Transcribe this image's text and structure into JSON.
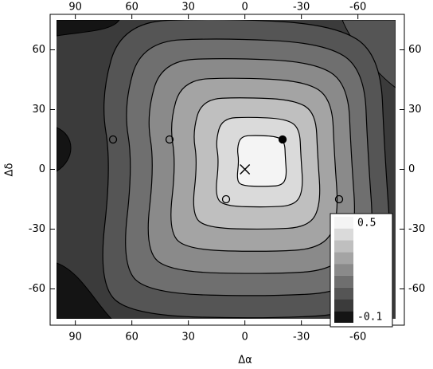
{
  "chart_data": {
    "type": "contour",
    "x_label": "Δα",
    "y_label": "Δδ",
    "xlim": [
      100,
      -80
    ],
    "ylim": [
      -75,
      75
    ],
    "xticks": [
      90,
      60,
      30,
      0,
      -30,
      -60
    ],
    "yticks": [
      60,
      30,
      0,
      -30,
      -60
    ],
    "colorbar": {
      "max_label": 0.5,
      "min_label": -0.1,
      "colors": [
        "#f4f4f4",
        "#dadada",
        "#bfbfbf",
        "#a4a4a4",
        "#8a8a8a",
        "#6f6f6f",
        "#555555",
        "#3b3b3b",
        "#141414"
      ]
    },
    "points": [
      {
        "x": 70,
        "y": 15,
        "marker": "open"
      },
      {
        "x": 40,
        "y": 15,
        "marker": "open"
      },
      {
        "x": 10,
        "y": -15,
        "marker": "open"
      },
      {
        "x": -50,
        "y": -15,
        "marker": "open"
      },
      {
        "x": -20,
        "y": 15,
        "marker": "filled"
      },
      {
        "x": 0,
        "y": 0,
        "marker": "cross"
      }
    ]
  }
}
